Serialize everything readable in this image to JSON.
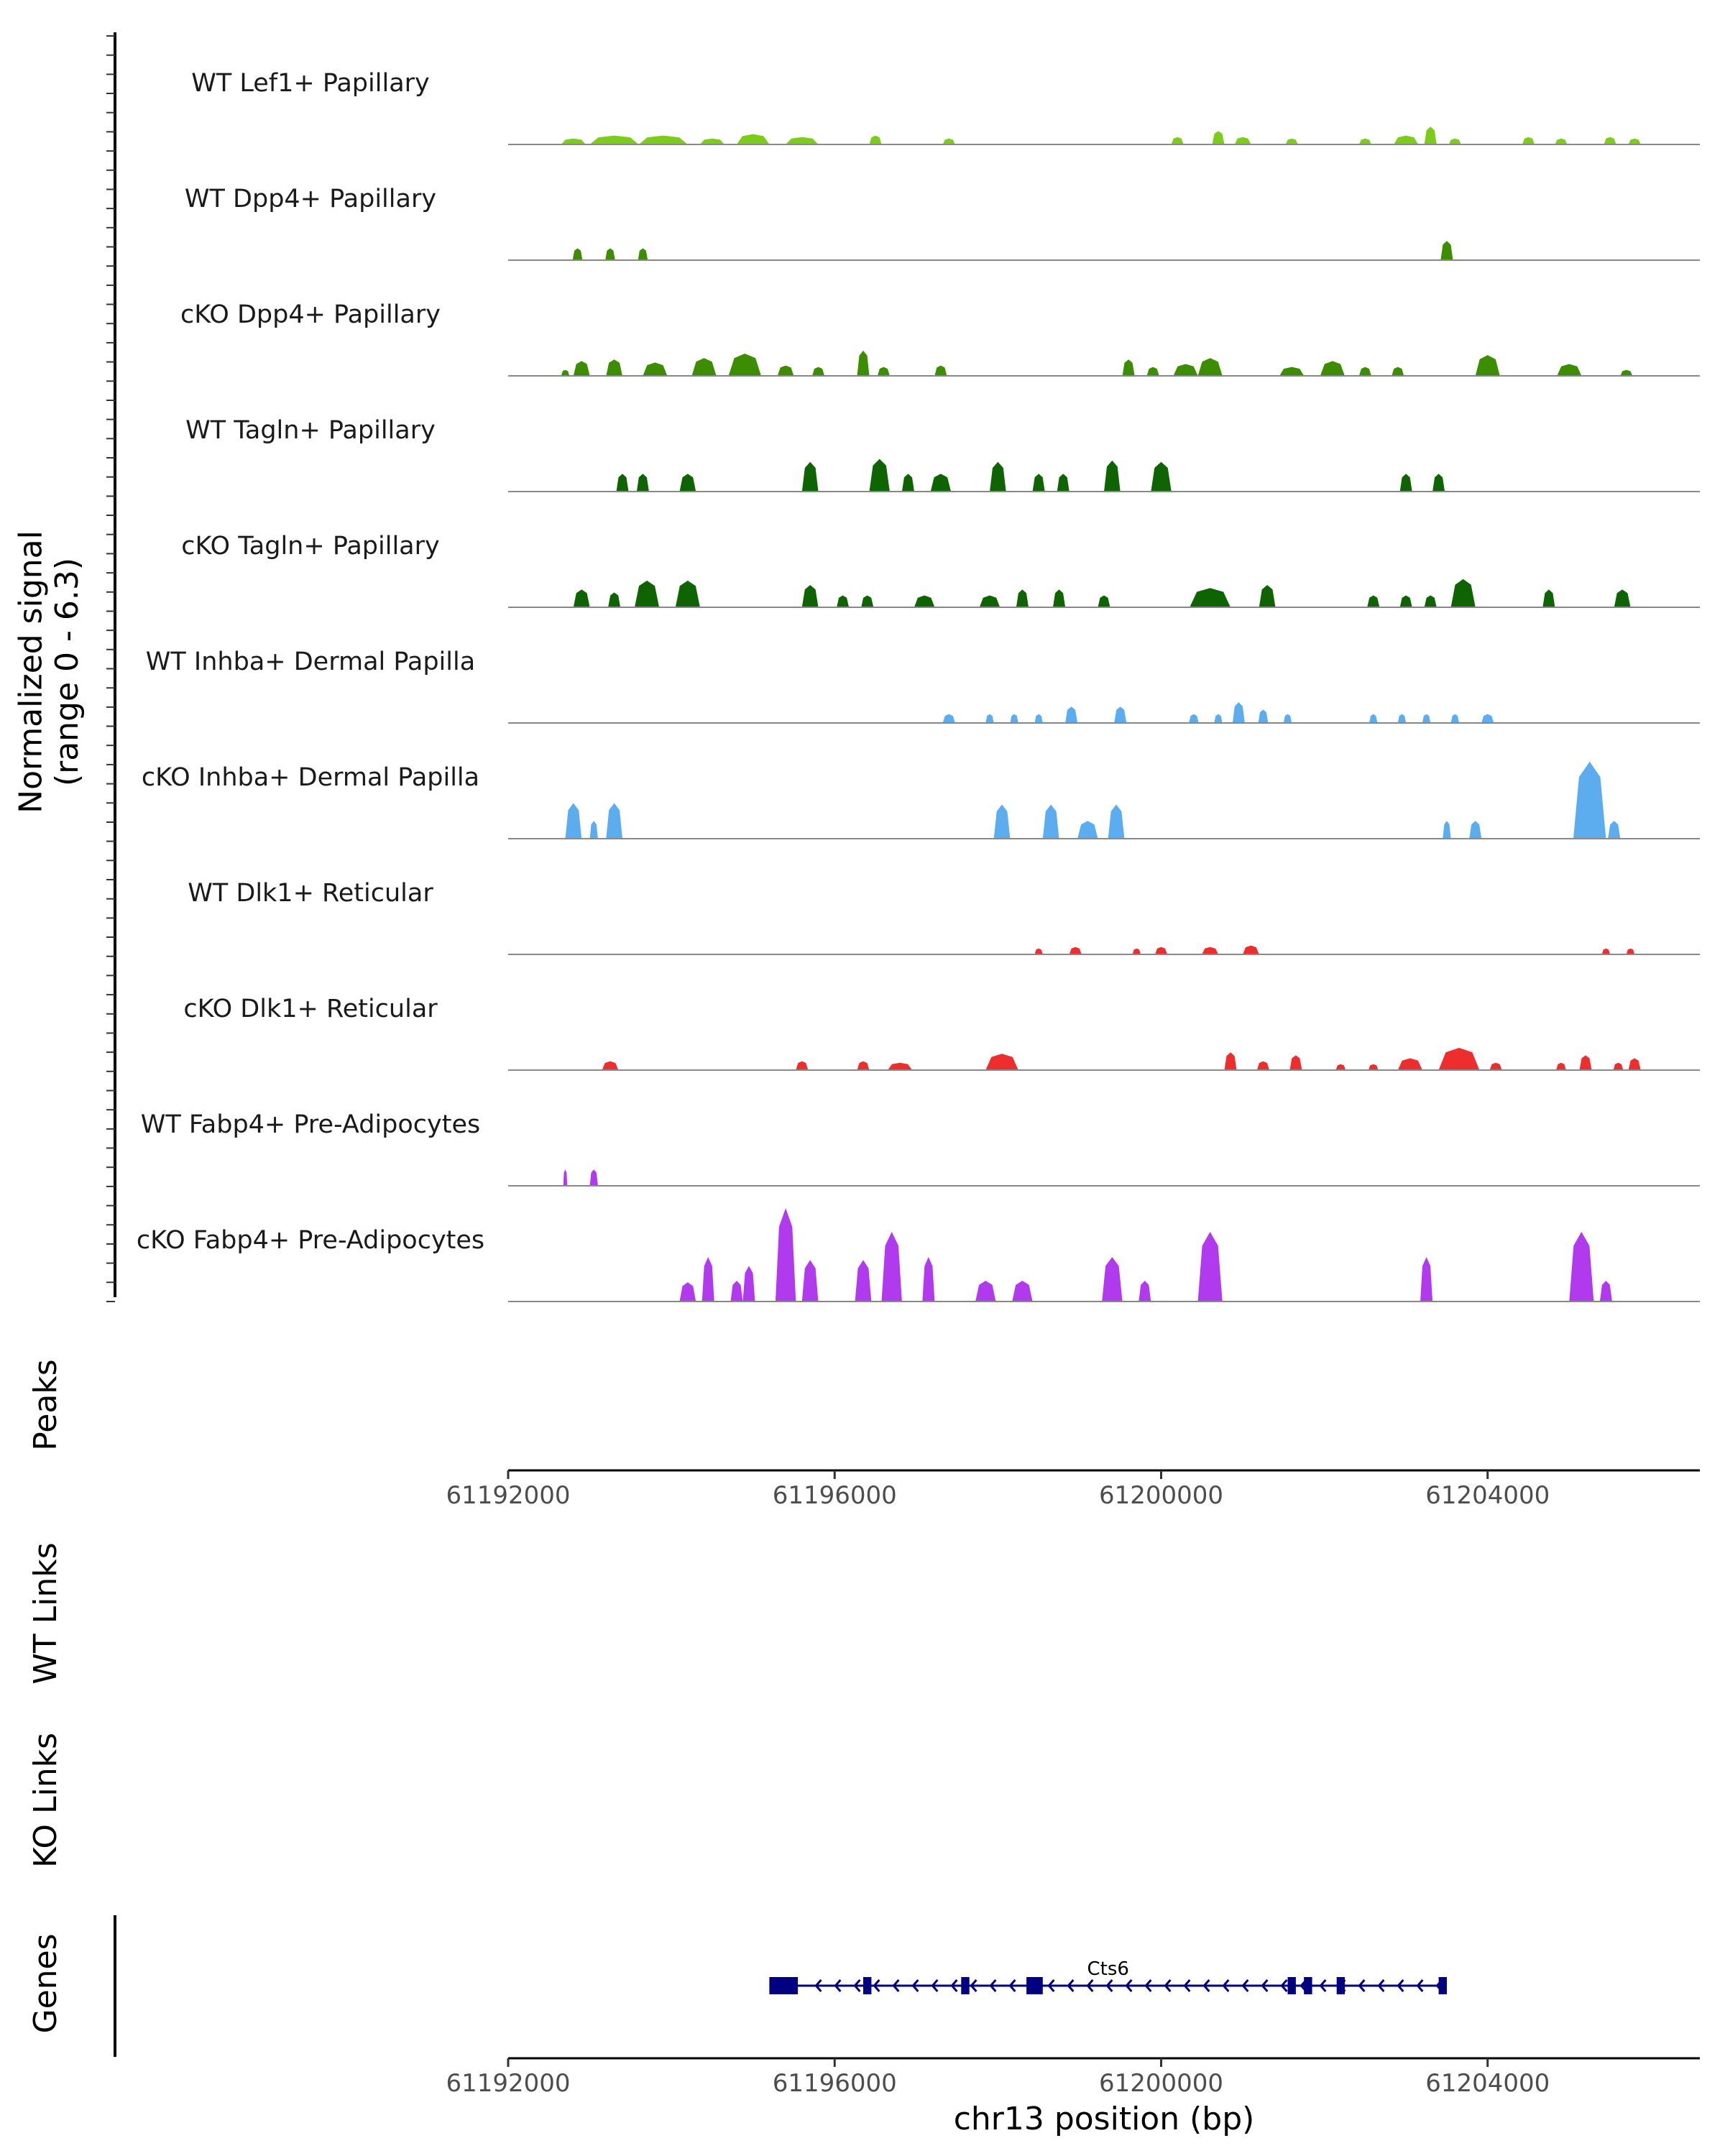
{
  "chart_data": {
    "type": "area",
    "title": "",
    "ylabel": "Normalized signal\n(range 0 - 6.3)",
    "ylim": [
      0,
      6.3
    ],
    "xlabel": "chr13 position (bp)",
    "xlim": [
      61192000,
      61206600
    ],
    "xticks": [
      61192000,
      61196000,
      61200000,
      61204000
    ],
    "xtick_labels": [
      "61192000",
      "61196000",
      "61200000",
      "61204000"
    ],
    "panel_labels": [
      "Peaks",
      "WT Links",
      "KO Links",
      "Genes"
    ],
    "series": [
      {
        "name": "WT Lef1+ Papillary",
        "color": "#7CCD1A",
        "peaks": [
          [
            61192800,
            0.4,
            300
          ],
          [
            61193300,
            0.6,
            600
          ],
          [
            61193900,
            0.6,
            600
          ],
          [
            61194500,
            0.4,
            300
          ],
          [
            61195000,
            0.7,
            400
          ],
          [
            61195600,
            0.5,
            400
          ],
          [
            61196500,
            0.6,
            150
          ],
          [
            61197400,
            0.4,
            150
          ],
          [
            61200200,
            0.5,
            150
          ],
          [
            61200700,
            0.9,
            150
          ],
          [
            61201000,
            0.5,
            200
          ],
          [
            61201600,
            0.4,
            150
          ],
          [
            61202500,
            0.4,
            150
          ],
          [
            61203000,
            0.6,
            300
          ],
          [
            61203300,
            1.2,
            150
          ],
          [
            61203600,
            0.4,
            150
          ],
          [
            61204500,
            0.5,
            150
          ],
          [
            61204900,
            0.4,
            150
          ],
          [
            61205500,
            0.5,
            150
          ],
          [
            61205800,
            0.4,
            150
          ]
        ]
      },
      {
        "name": "WT Dpp4+ Papillary",
        "color": "#3C8D00",
        "peaks": [
          [
            61192850,
            0.8,
            120
          ],
          [
            61193250,
            0.8,
            120
          ],
          [
            61193650,
            0.8,
            120
          ],
          [
            61203500,
            1.3,
            150
          ]
        ]
      },
      {
        "name": "cKO Dpp4+ Papillary",
        "color": "#3C8D00",
        "peaks": [
          [
            61192700,
            0.4,
            100
          ],
          [
            61192900,
            1.0,
            200
          ],
          [
            61193300,
            1.1,
            200
          ],
          [
            61193800,
            0.9,
            300
          ],
          [
            61194400,
            1.2,
            300
          ],
          [
            61194900,
            1.5,
            400
          ],
          [
            61195400,
            0.7,
            200
          ],
          [
            61195800,
            0.6,
            150
          ],
          [
            61196350,
            1.7,
            150
          ],
          [
            61196600,
            0.6,
            150
          ],
          [
            61197300,
            0.7,
            150
          ],
          [
            61199600,
            1.1,
            150
          ],
          [
            61199900,
            0.6,
            150
          ],
          [
            61200300,
            0.8,
            300
          ],
          [
            61200600,
            1.2,
            300
          ],
          [
            61201600,
            0.6,
            300
          ],
          [
            61202100,
            1.0,
            300
          ],
          [
            61202500,
            0.6,
            150
          ],
          [
            61202900,
            0.6,
            150
          ],
          [
            61204000,
            1.4,
            300
          ],
          [
            61205000,
            0.8,
            300
          ],
          [
            61205700,
            0.4,
            150
          ]
        ]
      },
      {
        "name": "WT Tagln+ Papillary",
        "color": "#0E6400",
        "peaks": [
          [
            61193400,
            1.2,
            150
          ],
          [
            61193650,
            1.2,
            150
          ],
          [
            61194200,
            1.2,
            200
          ],
          [
            61195700,
            2.0,
            200
          ],
          [
            61196550,
            2.2,
            250
          ],
          [
            61196900,
            1.2,
            150
          ],
          [
            61197300,
            1.2,
            250
          ],
          [
            61198000,
            2.0,
            200
          ],
          [
            61198500,
            1.2,
            150
          ],
          [
            61198800,
            1.2,
            150
          ],
          [
            61199400,
            2.1,
            200
          ],
          [
            61200000,
            2.0,
            250
          ],
          [
            61203000,
            1.2,
            150
          ],
          [
            61203400,
            1.2,
            150
          ]
        ]
      },
      {
        "name": "cKO Tagln+ Papillary",
        "color": "#0E6400",
        "peaks": [
          [
            61192900,
            1.2,
            200
          ],
          [
            61193300,
            1.0,
            150
          ],
          [
            61193700,
            1.8,
            300
          ],
          [
            61194200,
            1.8,
            300
          ],
          [
            61195700,
            1.5,
            200
          ],
          [
            61196100,
            0.8,
            150
          ],
          [
            61196400,
            0.8,
            150
          ],
          [
            61197100,
            0.8,
            250
          ],
          [
            61197900,
            0.8,
            250
          ],
          [
            61198300,
            1.2,
            150
          ],
          [
            61198750,
            1.2,
            150
          ],
          [
            61199300,
            0.8,
            150
          ],
          [
            61200600,
            1.3,
            500
          ],
          [
            61201300,
            1.5,
            200
          ],
          [
            61202600,
            0.8,
            150
          ],
          [
            61203000,
            0.8,
            150
          ],
          [
            61203300,
            0.8,
            150
          ],
          [
            61203700,
            1.9,
            300
          ],
          [
            61204750,
            1.2,
            150
          ],
          [
            61205650,
            1.2,
            200
          ]
        ]
      },
      {
        "name": "WT Inhba+ Dermal Papilla",
        "color": "#5CADEF",
        "peaks": [
          [
            61197400,
            0.6,
            150
          ],
          [
            61197900,
            0.6,
            100
          ],
          [
            61198200,
            0.6,
            100
          ],
          [
            61198500,
            0.6,
            100
          ],
          [
            61198900,
            1.1,
            150
          ],
          [
            61199500,
            1.1,
            150
          ],
          [
            61200400,
            0.6,
            120
          ],
          [
            61200700,
            0.6,
            100
          ],
          [
            61200950,
            1.4,
            150
          ],
          [
            61201250,
            0.9,
            120
          ],
          [
            61201550,
            0.6,
            100
          ],
          [
            61202600,
            0.6,
            100
          ],
          [
            61202950,
            0.6,
            100
          ],
          [
            61203250,
            0.6,
            100
          ],
          [
            61203600,
            0.6,
            100
          ],
          [
            61204000,
            0.6,
            150
          ]
        ]
      },
      {
        "name": "cKO Inhba+ Dermal Papilla",
        "color": "#5CADEF",
        "peaks": [
          [
            61192800,
            2.4,
            200
          ],
          [
            61193050,
            1.2,
            100
          ],
          [
            61193300,
            2.4,
            200
          ],
          [
            61198050,
            2.3,
            200
          ],
          [
            61198650,
            2.3,
            200
          ],
          [
            61199100,
            1.2,
            250
          ],
          [
            61199450,
            2.3,
            200
          ],
          [
            61203500,
            1.2,
            100
          ],
          [
            61203850,
            1.2,
            150
          ],
          [
            61205250,
            5.2,
            400
          ],
          [
            61205550,
            1.2,
            150
          ]
        ]
      },
      {
        "name": "WT Dlk1+ Reticular",
        "color": "#EE2E2E",
        "peaks": [
          [
            61198500,
            0.4,
            100
          ],
          [
            61198950,
            0.5,
            150
          ],
          [
            61199700,
            0.4,
            100
          ],
          [
            61200000,
            0.5,
            150
          ],
          [
            61200600,
            0.5,
            200
          ],
          [
            61201100,
            0.6,
            200
          ],
          [
            61205450,
            0.4,
            100
          ],
          [
            61205750,
            0.4,
            100
          ]
        ]
      },
      {
        "name": "cKO Dlk1+ Reticular",
        "color": "#EE2E2E",
        "peaks": [
          [
            61193250,
            0.6,
            200
          ],
          [
            61195600,
            0.6,
            150
          ],
          [
            61196350,
            0.6,
            150
          ],
          [
            61196800,
            0.5,
            300
          ],
          [
            61198050,
            1.1,
            400
          ],
          [
            61200850,
            1.2,
            150
          ],
          [
            61201250,
            0.6,
            150
          ],
          [
            61201650,
            1.0,
            150
          ],
          [
            61202200,
            0.4,
            120
          ],
          [
            61202600,
            0.4,
            120
          ],
          [
            61203050,
            0.8,
            300
          ],
          [
            61203650,
            1.5,
            500
          ],
          [
            61204100,
            0.5,
            150
          ],
          [
            61204900,
            0.5,
            120
          ],
          [
            61205200,
            1.0,
            150
          ],
          [
            61205600,
            0.5,
            120
          ],
          [
            61205800,
            0.8,
            150
          ]
        ]
      },
      {
        "name": "WT Fabp4+ Pre-Adipocytes",
        "color": "#B13AEE",
        "peaks": [
          [
            61192700,
            1.1,
            50
          ],
          [
            61193050,
            1.1,
            100
          ]
        ]
      },
      {
        "name": "cKO Fabp4+ Pre-Adipocytes",
        "color": "#B13AEE",
        "peaks": [
          [
            61194200,
            1.3,
            200
          ],
          [
            61194450,
            3.0,
            150
          ],
          [
            61194800,
            1.4,
            150
          ],
          [
            61194950,
            2.4,
            150
          ],
          [
            61195400,
            6.3,
            250
          ],
          [
            61195700,
            2.8,
            200
          ],
          [
            61196350,
            2.8,
            200
          ],
          [
            61196700,
            4.7,
            250
          ],
          [
            61197150,
            3.0,
            150
          ],
          [
            61197850,
            1.4,
            250
          ],
          [
            61198300,
            1.4,
            250
          ],
          [
            61199400,
            3.0,
            250
          ],
          [
            61199800,
            1.4,
            150
          ],
          [
            61200600,
            4.7,
            300
          ],
          [
            61203250,
            3.0,
            150
          ],
          [
            61205150,
            4.7,
            300
          ],
          [
            61205450,
            1.4,
            150
          ]
        ]
      }
    ],
    "genes": [
      {
        "name": "Cts6",
        "start": 61195200,
        "end": 61203500,
        "strand": "-",
        "exons": [
          [
            61195200,
            61195550
          ],
          [
            61196350,
            61196450
          ],
          [
            61197550,
            61197650
          ],
          [
            61198350,
            61198550
          ],
          [
            61201550,
            61201650
          ],
          [
            61201750,
            61201850
          ],
          [
            61202150,
            61202250
          ],
          [
            61203400,
            61203500
          ]
        ]
      }
    ]
  }
}
